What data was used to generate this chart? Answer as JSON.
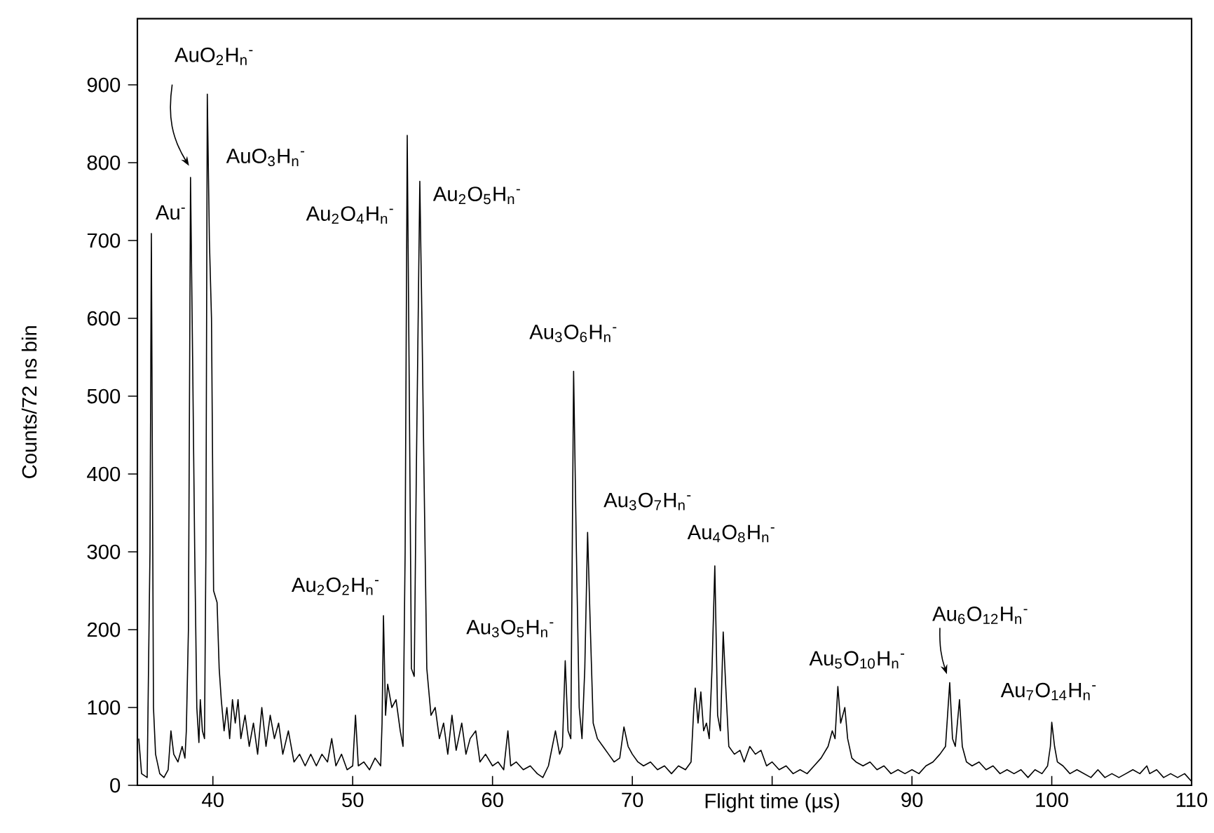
{
  "chart_data": {
    "type": "line",
    "xlabel": "Flight time (µs)",
    "ylabel": "Counts/72 ns bin",
    "xlim": [
      34.6,
      110
    ],
    "ylim": [
      0,
      985
    ],
    "xticks": [
      40,
      50,
      60,
      70,
      {
        "value": 80,
        "label": null
      },
      90,
      100,
      110
    ],
    "yticks": [
      0,
      100,
      200,
      300,
      400,
      500,
      600,
      700,
      800,
      900
    ],
    "grid": false,
    "series": [
      {
        "color": "#000000",
        "x": [
          34.7,
          34.9,
          35.3,
          35.5,
          35.6,
          35.75,
          35.9,
          36.2,
          36.5,
          36.8,
          37.0,
          37.2,
          37.5,
          37.8,
          38.0,
          38.1,
          38.25,
          38.4,
          38.55,
          38.7,
          38.85,
          39.0,
          39.1,
          39.25,
          39.4,
          39.5,
          39.6,
          39.75,
          39.9,
          40.05,
          40.3,
          40.45,
          40.6,
          40.8,
          41.0,
          41.2,
          41.4,
          41.6,
          41.8,
          42.0,
          42.3,
          42.6,
          42.9,
          43.2,
          43.5,
          43.8,
          44.1,
          44.4,
          44.7,
          45.0,
          45.4,
          45.8,
          46.2,
          46.6,
          47.0,
          47.4,
          47.8,
          48.2,
          48.5,
          48.8,
          49.2,
          49.6,
          50.0,
          50.2,
          50.4,
          50.8,
          51.2,
          51.6,
          52.0,
          52.1,
          52.2,
          52.35,
          52.5,
          52.8,
          53.1,
          53.4,
          53.6,
          53.75,
          53.9,
          54.05,
          54.2,
          54.4,
          54.55,
          54.8,
          54.95,
          55.1,
          55.3,
          55.6,
          55.9,
          56.2,
          56.5,
          56.8,
          57.1,
          57.4,
          57.8,
          58.1,
          58.4,
          58.8,
          59.1,
          59.5,
          60.0,
          60.4,
          60.8,
          61.1,
          61.3,
          61.7,
          62.2,
          62.7,
          63.2,
          63.6,
          64.0,
          64.5,
          64.8,
          65.0,
          65.2,
          65.4,
          65.6,
          65.8,
          66.0,
          66.2,
          66.4,
          66.6,
          66.8,
          67.0,
          67.2,
          67.5,
          67.9,
          68.3,
          68.7,
          69.1,
          69.4,
          69.7,
          70.0,
          70.4,
          70.8,
          71.3,
          71.8,
          72.3,
          72.8,
          73.3,
          73.8,
          74.2,
          74.4,
          74.5,
          74.7,
          74.9,
          75.1,
          75.3,
          75.5,
          75.7,
          75.9,
          76.1,
          76.3,
          76.5,
          76.7,
          76.9,
          77.3,
          77.7,
          78.0,
          78.4,
          78.8,
          79.2,
          79.6,
          80.0,
          80.5,
          81.0,
          81.5,
          82.0,
          82.5,
          83.0,
          83.5,
          84.0,
          84.3,
          84.5,
          84.7,
          84.9,
          85.2,
          85.4,
          85.7,
          86.0,
          86.5,
          87.0,
          87.5,
          88.0,
          88.5,
          89.0,
          89.5,
          90.0,
          90.5,
          91.0,
          91.5,
          92.0,
          92.4,
          92.7,
          92.9,
          93.1,
          93.4,
          93.6,
          93.9,
          94.3,
          94.8,
          95.3,
          95.8,
          96.3,
          96.8,
          97.3,
          97.8,
          98.3,
          98.8,
          99.3,
          99.7,
          99.9,
          100.0,
          100.2,
          100.4,
          100.8,
          101.3,
          101.8,
          102.3,
          102.8,
          103.3,
          103.8,
          104.3,
          104.8,
          105.3,
          105.8,
          106.3,
          106.8,
          107.0,
          107.5,
          108.0,
          108.5,
          109.0,
          109.5,
          110.0
        ],
        "values": [
          60,
          15,
          10,
          300,
          709,
          100,
          40,
          15,
          10,
          20,
          70,
          40,
          30,
          50,
          35,
          70,
          200,
          781,
          550,
          300,
          100,
          55,
          110,
          70,
          60,
          300,
          888,
          700,
          600,
          250,
          235,
          150,
          110,
          70,
          100,
          60,
          110,
          80,
          110,
          60,
          90,
          50,
          80,
          40,
          100,
          50,
          90,
          60,
          80,
          40,
          70,
          30,
          40,
          25,
          40,
          25,
          40,
          30,
          60,
          25,
          40,
          20,
          25,
          90,
          25,
          30,
          20,
          35,
          25,
          80,
          218,
          90,
          130,
          100,
          110,
          70,
          50,
          300,
          835,
          500,
          150,
          140,
          400,
          776,
          600,
          400,
          150,
          90,
          100,
          60,
          80,
          40,
          90,
          45,
          80,
          40,
          60,
          70,
          30,
          40,
          25,
          30,
          20,
          70,
          25,
          30,
          20,
          25,
          15,
          10,
          25,
          70,
          40,
          50,
          160,
          70,
          60,
          532,
          300,
          100,
          60,
          150,
          325,
          200,
          80,
          60,
          50,
          40,
          30,
          35,
          75,
          50,
          40,
          30,
          25,
          30,
          20,
          25,
          15,
          25,
          20,
          30,
          100,
          125,
          80,
          120,
          70,
          80,
          60,
          150,
          282,
          90,
          70,
          197,
          120,
          50,
          40,
          45,
          30,
          50,
          40,
          45,
          25,
          30,
          20,
          25,
          15,
          20,
          15,
          25,
          35,
          50,
          70,
          60,
          127,
          80,
          100,
          60,
          35,
          30,
          25,
          30,
          20,
          25,
          15,
          20,
          15,
          20,
          15,
          25,
          30,
          40,
          50,
          132,
          60,
          50,
          110,
          50,
          30,
          25,
          30,
          20,
          25,
          15,
          20,
          15,
          20,
          10,
          20,
          15,
          25,
          50,
          81,
          50,
          30,
          25,
          15,
          20,
          15,
          10,
          20,
          10,
          15,
          10,
          15,
          20,
          15,
          25,
          15,
          20,
          10,
          15,
          10,
          15,
          5
        ]
      }
    ],
    "annotations": [
      {
        "text": "Au$^{-}$",
        "x": 35.6,
        "y": 709
      },
      "AuO$_{2}$H$_{n}$$^{-}$",
      "AuO$_{3}$H$_{n}$$^{-}$",
      {
        "text": "Au$_{2}$O$_{2}$H$_{n}$$^{-}$",
        "x": 52.2,
        "y": 218
      },
      "Au$_{2}$O$_{4}$H$_{n}$$^{-}$",
      {
        "text": "Au$_{2}$O$_{5}$H$_{n}$$^{-}$",
        "x": 54.8,
        "y": 776
      },
      {
        "text": "Au$_{3}$O$_{5}$H$_{n}$$^{-}$",
        "x": 65.2,
        "y": 160
      },
      {
        "text": "Au$_{3}$O$_{6}$H$_{n}$$^{-}$",
        "x": 65.8,
        "y": 532
      },
      {
        "text": "Au$_{3}$O$_{7}$H$_{n}$$^{-}$",
        "x": 66.8,
        "y": 325
      },
      {
        "text": "Au$_{4}$O$_{8}$H$_{n}$$^{-}$",
        "x": 75.9,
        "y": 282
      },
      {
        "text": "Au$_{5}$O$_{10}$H$_{n}$$^{-}$",
        "x": 84.7,
        "y": 127
      },
      {
        "text": "Au$_{6}$O$_{12}$H$_{n}$$^{-}$",
        "x": 92.7,
        "y": 132
      },
      {
        "text": "Au$_{7}$O$_{14}$H$_{n}$$^{-}$",
        "x": 100.0,
        "y": 81
      }
    ]
  }
}
